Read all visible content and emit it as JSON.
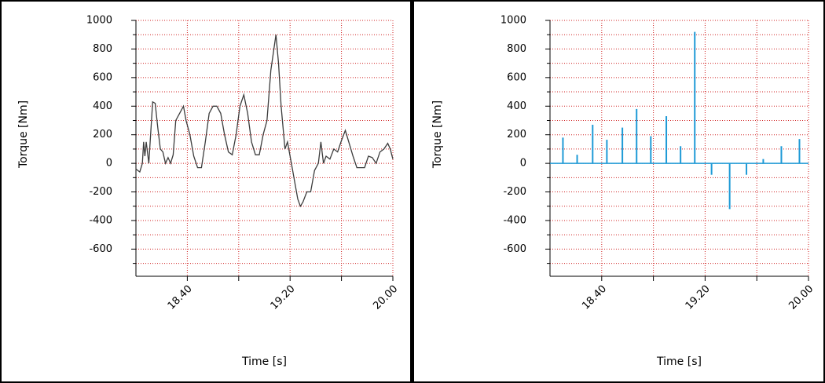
{
  "chart_data": [
    {
      "type": "line",
      "xlabel": "Time [s]",
      "ylabel": "Torque [Nm]",
      "color": "#3c3c3c",
      "x": [
        18.0,
        18.03,
        18.05,
        18.06,
        18.07,
        18.08,
        18.1,
        18.13,
        18.15,
        18.17,
        18.19,
        18.21,
        18.23,
        18.25,
        18.27,
        18.29,
        18.31,
        18.34,
        18.37,
        18.39,
        18.42,
        18.45,
        18.48,
        18.51,
        18.54,
        18.57,
        18.6,
        18.63,
        18.66,
        18.69,
        18.72,
        18.75,
        18.78,
        18.81,
        18.84,
        18.87,
        18.9,
        18.93,
        18.96,
        18.99,
        19.02,
        19.05,
        19.09,
        19.11,
        19.13,
        19.16,
        19.18,
        19.2,
        19.22,
        19.24,
        19.26,
        19.28,
        19.3,
        19.33,
        19.36,
        19.39,
        19.42,
        19.44,
        19.46,
        19.48,
        19.51,
        19.54,
        19.57,
        19.6,
        19.63,
        19.66,
        19.69,
        19.72,
        19.75,
        19.78,
        19.81,
        19.84,
        19.87,
        19.9,
        19.93,
        19.96,
        19.98,
        20.0
      ],
      "values": [
        -40,
        -60,
        0,
        150,
        50,
        150,
        0,
        430,
        420,
        250,
        100,
        80,
        0,
        40,
        0,
        60,
        300,
        350,
        400,
        300,
        200,
        50,
        -30,
        -30,
        150,
        350,
        400,
        400,
        350,
        200,
        80,
        60,
        200,
        400,
        480,
        350,
        150,
        60,
        60,
        200,
        300,
        650,
        900,
        700,
        400,
        100,
        150,
        50,
        -50,
        -150,
        -250,
        -300,
        -270,
        -200,
        -200,
        -50,
        0,
        150,
        0,
        50,
        30,
        100,
        80,
        160,
        230,
        140,
        50,
        -30,
        -30,
        -30,
        50,
        40,
        0,
        80,
        100,
        140,
        100,
        30
      ],
      "xlim": [
        18.0,
        20.0
      ],
      "xticks": [
        {
          "value": 18.4,
          "label": "18.40"
        },
        {
          "value": 18.8,
          "label": null
        },
        {
          "value": 19.2,
          "label": "19.20"
        },
        {
          "value": 19.6,
          "label": null
        },
        {
          "value": 20.0,
          "label": "20.00"
        }
      ],
      "ylim": [
        -790,
        1000
      ],
      "yticks": [
        1000,
        800,
        600,
        400,
        200,
        0,
        -200,
        -400,
        -600
      ],
      "yminorticks": [
        900,
        700,
        500,
        300,
        100,
        -100,
        -300,
        -500,
        -700
      ],
      "grid": true
    },
    {
      "type": "stem",
      "xlabel": "Time [s]",
      "ylabel": "Torque [Nm]",
      "color": "#1e9ad6",
      "x": [
        18.1,
        18.21,
        18.33,
        18.44,
        18.56,
        18.67,
        18.78,
        18.9,
        19.01,
        19.12,
        19.25,
        19.39,
        19.52,
        19.65,
        19.79,
        19.93
      ],
      "values": [
        180,
        60,
        270,
        165,
        250,
        380,
        190,
        330,
        120,
        920,
        -80,
        -320,
        -80,
        30,
        120,
        170
      ],
      "xlim": [
        18.0,
        20.0
      ],
      "xticks": [
        {
          "value": 18.4,
          "label": "18.40"
        },
        {
          "value": 18.8,
          "label": null
        },
        {
          "value": 19.2,
          "label": "19.20"
        },
        {
          "value": 19.6,
          "label": null
        },
        {
          "value": 20.0,
          "label": "20.00"
        }
      ],
      "ylim": [
        -790,
        1000
      ],
      "yticks": [
        1000,
        800,
        600,
        400,
        200,
        0,
        -200,
        -400,
        -600
      ],
      "yminorticks": [
        900,
        700,
        500,
        300,
        100,
        -100,
        -300,
        -500,
        -700
      ],
      "grid": true
    }
  ]
}
